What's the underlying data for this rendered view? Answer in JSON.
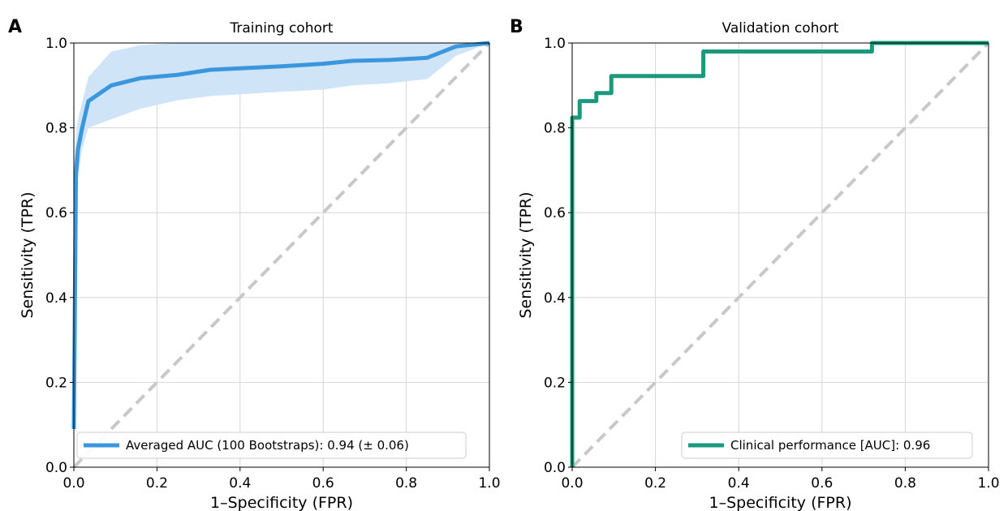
{
  "chart_data": [
    {
      "type": "line",
      "panel_label": "A",
      "title": "Training cohort",
      "xlabel": "1–Specificity (FPR)",
      "ylabel": "Sensitivity (TPR)",
      "xlim": [
        0,
        1
      ],
      "ylim": [
        0,
        1
      ],
      "xticks": [
        "0.0",
        "0.2",
        "0.4",
        "0.6",
        "0.8",
        "1.0"
      ],
      "yticks": [
        "0.0",
        "0.2",
        "0.4",
        "0.6",
        "0.8",
        "1.0"
      ],
      "grid": true,
      "legend_position": "lower-right",
      "color": "#3a96dd",
      "band_color": "#cfe5f7",
      "diagonal_color": "#c8c8c8",
      "series": [
        {
          "name": "Averaged AUC (100 Bootstraps): 0.94 (± 0.06)",
          "x": [
            0,
            0.005,
            0.01,
            0.02,
            0.035,
            0.09,
            0.16,
            0.25,
            0.33,
            0.5,
            0.6,
            0.67,
            0.76,
            0.85,
            0.92,
            1.0
          ],
          "y": [
            0.09,
            0.69,
            0.75,
            0.8,
            0.863,
            0.9,
            0.917,
            0.925,
            0.937,
            0.945,
            0.951,
            0.958,
            0.96,
            0.965,
            0.992,
            1.0
          ],
          "band_upper": [
            0.7,
            0.78,
            0.82,
            0.86,
            0.92,
            0.98,
            0.995,
            1.0,
            1.0,
            1.0,
            1.0,
            1.0,
            1.0,
            1.0,
            1.0,
            1.0
          ],
          "band_lower": [
            0.0,
            0.6,
            0.68,
            0.75,
            0.8,
            0.82,
            0.845,
            0.865,
            0.875,
            0.885,
            0.89,
            0.9,
            0.905,
            0.915,
            0.97,
            1.0
          ]
        }
      ]
    },
    {
      "type": "line",
      "panel_label": "B",
      "title": "Validation cohort",
      "xlabel": "1–Specificity (FPR)",
      "ylabel": "Sensitivity (TPR)",
      "xlim": [
        0,
        1
      ],
      "ylim": [
        0,
        1
      ],
      "xticks": [
        "0.0",
        "0.2",
        "0.4",
        "0.6",
        "0.8",
        "1.0"
      ],
      "yticks": [
        "0.0",
        "0.2",
        "0.4",
        "0.6",
        "0.8",
        "1.0"
      ],
      "grid": true,
      "legend_position": "lower-right",
      "color": "#1a9a7c",
      "diagonal_color": "#c8c8c8",
      "series": [
        {
          "name": "Clinical performance [AUC]: 0.96",
          "x": [
            0,
            0,
            0.003,
            0.003,
            0.018,
            0.018,
            0.04,
            0.04,
            0.058,
            0.058,
            0.094,
            0.094,
            0.315,
            0.315,
            0.72,
            0.72,
            1.0
          ],
          "y": [
            0,
            0.824,
            0.824,
            0.824,
            0.824,
            0.863,
            0.863,
            0.863,
            0.863,
            0.882,
            0.882,
            0.922,
            0.922,
            0.98,
            0.98,
            1.0,
            1.0
          ]
        }
      ]
    }
  ]
}
